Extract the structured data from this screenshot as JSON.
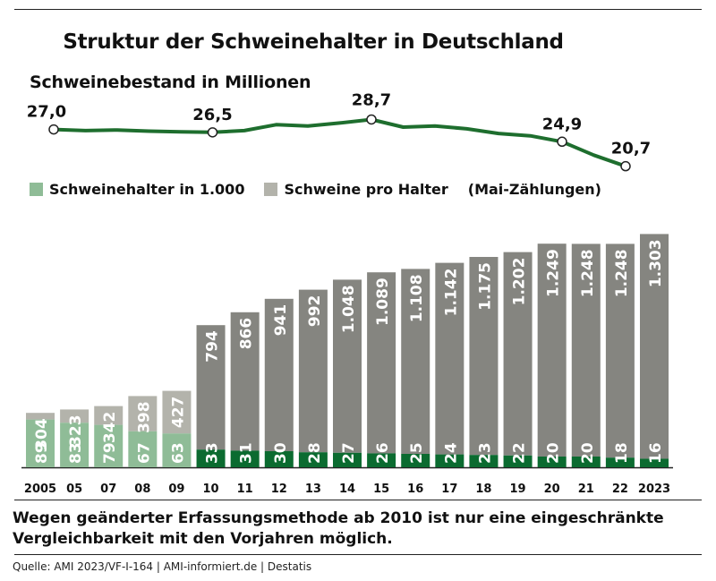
{
  "title": "Struktur der Schweinehalter in Deutschland",
  "colors": {
    "holders_light": "#8fbc97",
    "pigs_light": "#b3b3ab",
    "holders_dark": "#0b6b30",
    "pigs_dark": "#858580",
    "line": "#1e6e2e"
  },
  "legend": {
    "holders": "Schweinehalter in 1.000",
    "pigs_per_holder": "Schweine pro Halter",
    "note": "(Mai-Zählungen)"
  },
  "chart_data": [
    {
      "type": "line",
      "title": "Schweinebestand in Millionen",
      "labeled_points": [
        {
          "x": "2005",
          "y": 27.0,
          "label": "27,0"
        },
        {
          "x": "2010",
          "y": 26.5,
          "label": "26,5"
        },
        {
          "x": "2015",
          "y": 28.7,
          "label": "28,7"
        },
        {
          "x": "2021",
          "y": 24.9,
          "label": "24,9"
        },
        {
          "x": "2023",
          "y": 20.7,
          "label": "20,7"
        }
      ],
      "x": [
        "2005",
        "2006",
        "2007",
        "2008",
        "2009",
        "2010",
        "2011",
        "2012",
        "2013",
        "2014",
        "2015",
        "2016",
        "2017",
        "2018",
        "2019",
        "2020",
        "2021",
        "2022",
        "2023"
      ],
      "y": [
        27.0,
        26.8,
        26.9,
        26.7,
        26.6,
        26.5,
        26.8,
        27.8,
        27.6,
        28.1,
        28.7,
        27.4,
        27.6,
        27.1,
        26.3,
        25.9,
        24.9,
        22.6,
        20.7
      ]
    },
    {
      "type": "bar",
      "stacked": true,
      "categories": [
        "2005",
        "05",
        "07",
        "08",
        "09",
        "10",
        "11",
        "12",
        "13",
        "14",
        "15",
        "16",
        "17",
        "18",
        "19",
        "20",
        "21",
        "22",
        "2023"
      ],
      "legend_position": "top-left",
      "series": [
        {
          "name": "Schweinehalter in 1.000",
          "values": [
            89,
            83,
            79,
            67,
            63,
            33,
            31,
            30,
            28,
            27,
            26,
            25,
            24,
            23,
            22,
            20,
            20,
            18,
            16
          ]
        },
        {
          "name": "Schweine pro Halter",
          "values": [
            304,
            323,
            342,
            398,
            427,
            794,
            866,
            941,
            992,
            1048,
            1089,
            1108,
            1142,
            1175,
            1202,
            1249,
            1248,
            1248,
            1303
          ]
        }
      ],
      "value_labels_holders": [
        "89",
        "83",
        "79",
        "67",
        "63",
        "33",
        "31",
        "30",
        "28",
        "27",
        "26",
        "25",
        "24",
        "23",
        "22",
        "20",
        "20",
        "18",
        "16"
      ],
      "value_labels_pigs": [
        "304",
        "323",
        "342",
        "398",
        "427",
        "794",
        "866",
        "941",
        "992",
        "1.048",
        "1.089",
        "1.108",
        "1.142",
        "1.175",
        "1.202",
        "1.249",
        "1.248",
        "1.248",
        "1.303"
      ],
      "light_until_index": 4
    }
  ],
  "footnote": "Wegen geänderter Erfassungsmethode ab 2010 ist nur eine eingeschränkte Vergleichbarkeit mit den Vorjahren möglich.",
  "source": "Quelle: AMI 2023/VF-I-164 | AMI-informiert.de | Destatis"
}
